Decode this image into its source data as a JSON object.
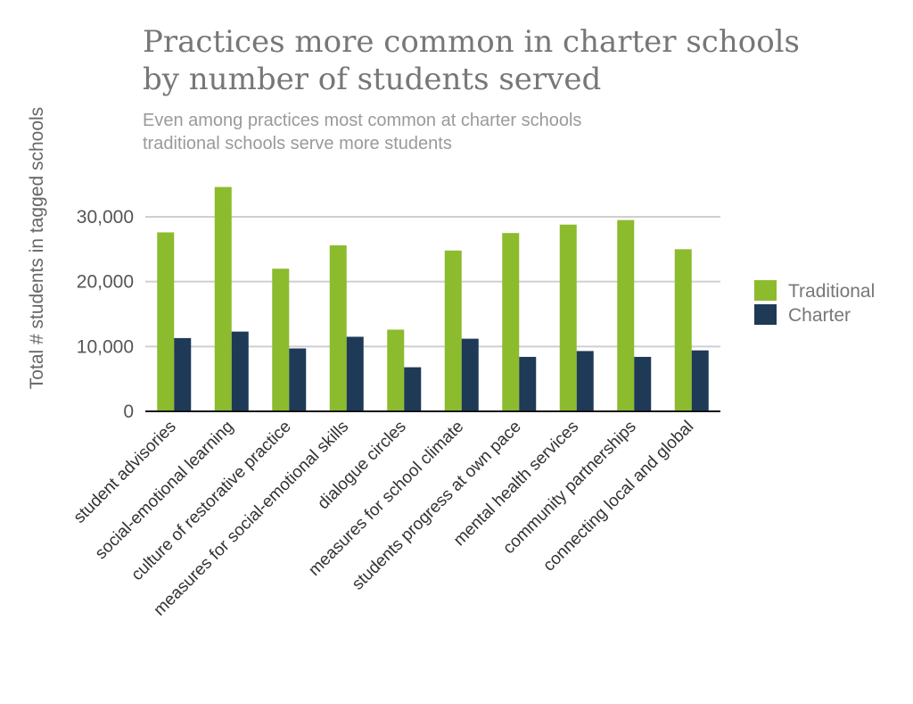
{
  "chart_data": {
    "type": "bar",
    "title_lines": [
      "Practices more common in charter schools",
      "by number of students served"
    ],
    "subtitle_lines": [
      "Even among practices most common at charter schools",
      "traditional schools serve more students"
    ],
    "xlabel": "",
    "ylabel": "Total # students in tagged schools",
    "ylim": [
      0,
      35000
    ],
    "yticks": [
      0,
      10000,
      20000,
      30000
    ],
    "ytick_labels": [
      "0",
      "10,000",
      "20,000",
      "30,000"
    ],
    "grid": true,
    "legend_position": "right",
    "categories": [
      "student advisories",
      "social-emotional learning",
      "culture of restorative practice",
      "measures for social-emotional skills",
      "dialogue circles",
      "measures for school climate",
      "students progress at own pace",
      "mental health services",
      "community partnerships",
      "connecting local and global"
    ],
    "series": [
      {
        "name": "Traditional",
        "color": "#8cbb2d",
        "values": [
          27600,
          34600,
          22000,
          25600,
          12600,
          24800,
          27500,
          28800,
          29500,
          25000
        ]
      },
      {
        "name": "Charter",
        "color": "#1f3a57",
        "values": [
          11300,
          12300,
          9700,
          11500,
          6800,
          11200,
          8400,
          9300,
          8400,
          9400
        ]
      }
    ]
  }
}
